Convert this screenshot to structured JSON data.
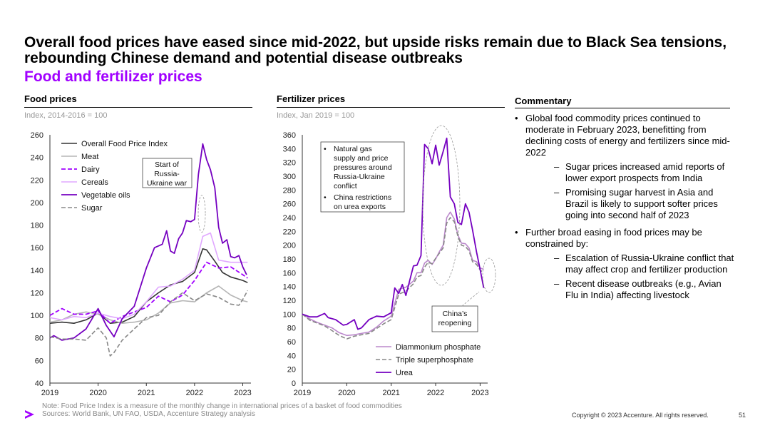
{
  "title": "Overall food prices have eased since mid-2022, but upside risks remain due to Black Sea tensions, rebounding Chinese demand and potential disease outbreaks",
  "subtitle": "Food and fertilizer prices",
  "colors": {
    "accent": "#a100ff",
    "food_index": "#333333",
    "meat": "#b5b5b5",
    "dairy": "#a100ff",
    "cereals": "#e0a8ff",
    "veg_oils": "#7500c0",
    "sugar": "#888888",
    "dap": "#bb88cc",
    "tsp": "#888888",
    "urea": "#7500c0"
  },
  "food_section": {
    "heading": "Food prices",
    "subheading": "Index, 2014-2016 = 100"
  },
  "fert_section": {
    "heading": "Fertilizer prices",
    "subheading": "Index, Jan 2019 = 100"
  },
  "commentary": {
    "heading": "Commentary",
    "items": [
      {
        "text": "Global food commodity prices continued to moderate in February 2023, benefitting from declining costs of energy and fertilizers since mid-2022",
        "subitems": [
          "Sugar prices increased amid reports of lower export prospects from India",
          "Promising sugar harvest in Asia and Brazil is likely to support softer prices going into second half of 2023"
        ]
      },
      {
        "text": "Further broad easing in food prices may be constrained by:",
        "subitems": [
          "Escalation of Russia-Ukraine conflict that may affect crop and fertilizer production",
          "Recent disease outbreaks (e.g., Avian Flu in India) affecting livestock"
        ]
      }
    ]
  },
  "note": "Note: Food Price Index is a measure of the monthly change in international prices of a basket of food commodities",
  "sources": "Sources: World Bank, UN FAO, USDA, Accenture Strategy analysis",
  "copyright": "Copyright © 2023 Accenture. All rights reserved.",
  "page_number": "51",
  "logo_name": "accenture-logo",
  "chart_data": [
    {
      "type": "line",
      "x_ticks": [
        "2019",
        "2020",
        "2021",
        "2022",
        "2023"
      ],
      "y_ticks": [
        40,
        60,
        80,
        100,
        120,
        140,
        160,
        180,
        200,
        220,
        240,
        260
      ],
      "xlim": [
        2019.0,
        2023.17
      ],
      "ylim": [
        40,
        260
      ],
      "legend_position": "top-left",
      "grid": false,
      "annotations": [
        {
          "text": "Start of Russia-Ukraine war",
          "x": 2022.15,
          "y": 185
        }
      ],
      "series": [
        {
          "name": "Overall Food Price Index",
          "color": "#333333",
          "dash": "solid",
          "x": [
            2019.0,
            2019.25,
            2019.5,
            2019.75,
            2020.0,
            2020.25,
            2020.5,
            2020.75,
            2021.0,
            2021.25,
            2021.5,
            2021.75,
            2022.0,
            2022.17,
            2022.25,
            2022.42,
            2022.58,
            2022.75,
            2023.0,
            2023.1
          ],
          "y": [
            93,
            94,
            93,
            96,
            102,
            93,
            94,
            99,
            112,
            120,
            127,
            130,
            138,
            159,
            158,
            148,
            138,
            134,
            131,
            129
          ]
        },
        {
          "name": "Meat",
          "color": "#b5b5b5",
          "dash": "solid",
          "x": [
            2019.0,
            2019.25,
            2019.5,
            2019.75,
            2020.0,
            2020.25,
            2020.5,
            2020.75,
            2021.0,
            2021.25,
            2021.5,
            2021.75,
            2022.0,
            2022.25,
            2022.5,
            2022.75,
            2023.0,
            2023.1
          ],
          "y": [
            94,
            96,
            101,
            103,
            101,
            96,
            93,
            94,
            96,
            102,
            111,
            113,
            112,
            120,
            126,
            118,
            113,
            112
          ]
        },
        {
          "name": "Dairy",
          "color": "#a100ff",
          "dash": "dash",
          "x": [
            2019.0,
            2019.25,
            2019.5,
            2019.75,
            2020.0,
            2020.25,
            2020.5,
            2020.75,
            2021.0,
            2021.25,
            2021.5,
            2021.75,
            2022.0,
            2022.25,
            2022.5,
            2022.75,
            2023.0,
            2023.1
          ],
          "y": [
            100,
            106,
            101,
            101,
            104,
            93,
            99,
            103,
            107,
            117,
            112,
            118,
            131,
            147,
            142,
            143,
            136,
            133
          ]
        },
        {
          "name": "Cereals",
          "color": "#e0a8ff",
          "dash": "solid",
          "x": [
            2019.0,
            2019.25,
            2019.5,
            2019.75,
            2020.0,
            2020.25,
            2020.5,
            2020.75,
            2021.0,
            2021.25,
            2021.5,
            2021.75,
            2022.0,
            2022.17,
            2022.33,
            2022.5,
            2022.75,
            2023.0,
            2023.1
          ],
          "y": [
            98,
            96,
            99,
            98,
            102,
            99,
            97,
            101,
            112,
            125,
            126,
            132,
            140,
            170,
            173,
            149,
            147,
            147,
            147
          ]
        },
        {
          "name": "Vegetable oils",
          "color": "#7500c0",
          "dash": "solid",
          "x": [
            2019.0,
            2019.08,
            2019.25,
            2019.5,
            2019.75,
            2020.0,
            2020.17,
            2020.33,
            2020.5,
            2020.75,
            2021.0,
            2021.17,
            2021.33,
            2021.42,
            2021.5,
            2021.58,
            2021.67,
            2021.75,
            2021.83,
            2021.92,
            2022.0,
            2022.08,
            2022.17,
            2022.25,
            2022.33,
            2022.42,
            2022.5,
            2022.58,
            2022.67,
            2022.75,
            2022.83,
            2022.92,
            2023.0,
            2023.08
          ],
          "y": [
            80,
            82,
            78,
            80,
            88,
            106,
            91,
            81,
            97,
            108,
            142,
            160,
            163,
            175,
            157,
            155,
            168,
            173,
            184,
            183,
            185,
            225,
            252,
            238,
            229,
            213,
            178,
            164,
            167,
            152,
            151,
            153,
            143,
            136
          ]
        },
        {
          "name": "Sugar",
          "color": "#888888",
          "dash": "dash",
          "x": [
            2019.0,
            2019.25,
            2019.5,
            2019.75,
            2020.0,
            2020.17,
            2020.25,
            2020.33,
            2020.5,
            2020.75,
            2021.0,
            2021.25,
            2021.5,
            2021.75,
            2022.0,
            2022.25,
            2022.5,
            2022.75,
            2022.92,
            2023.0,
            2023.1
          ],
          "y": [
            81,
            79,
            79,
            78,
            89,
            80,
            64,
            67,
            78,
            88,
            98,
            100,
            112,
            120,
            113,
            119,
            116,
            110,
            109,
            114,
            122
          ]
        }
      ]
    },
    {
      "type": "line",
      "x_ticks": [
        "2019",
        "2020",
        "2021",
        "2022",
        "2023"
      ],
      "y_ticks": [
        0,
        20,
        40,
        60,
        80,
        100,
        120,
        140,
        160,
        180,
        200,
        220,
        240,
        260,
        280,
        300,
        320,
        340,
        360
      ],
      "xlim": [
        2019.0,
        2023.17
      ],
      "ylim": [
        0,
        360
      ],
      "legend_position": "bottom-right",
      "grid": false,
      "annotations": [
        {
          "text": "Natural gas supply and price pressures around Russia-Ukraine conflict",
          "x": 2021.9,
          "y": 260
        },
        {
          "text": "China restrictions on urea exports",
          "x": 2021.9,
          "y": 260
        },
        {
          "text": "China’s reopening",
          "x": 2023.05,
          "y": 150
        }
      ],
      "series": [
        {
          "name": "Diammonium phosphate",
          "color": "#bb88cc",
          "dash": "solid",
          "x": [
            2019.0,
            2019.17,
            2019.33,
            2019.5,
            2019.67,
            2019.83,
            2020.0,
            2020.17,
            2020.33,
            2020.5,
            2020.67,
            2020.83,
            2021.0,
            2021.17,
            2021.33,
            2021.5,
            2021.58,
            2021.67,
            2021.75,
            2021.83,
            2021.92,
            2022.0,
            2022.08,
            2022.17,
            2022.25,
            2022.33,
            2022.42,
            2022.5,
            2022.58,
            2022.67,
            2022.75,
            2022.83,
            2022.92,
            2023.0,
            2023.08
          ],
          "y": [
            100,
            93,
            88,
            84,
            80,
            73,
            69,
            70,
            72,
            74,
            81,
            90,
            97,
            136,
            139,
            148,
            160,
            160,
            174,
            178,
            172,
            180,
            190,
            200,
            240,
            248,
            238,
            215,
            203,
            202,
            196,
            178,
            176,
            167,
            165
          ]
        },
        {
          "name": "Triple superphosphate",
          "color": "#888888",
          "dash": "dash",
          "x": [
            2019.0,
            2019.17,
            2019.33,
            2019.5,
            2019.67,
            2019.83,
            2020.0,
            2020.17,
            2020.33,
            2020.5,
            2020.67,
            2020.83,
            2021.0,
            2021.17,
            2021.33,
            2021.5,
            2021.58,
            2021.67,
            2021.75,
            2021.83,
            2021.92,
            2022.0,
            2022.08,
            2022.17,
            2022.25,
            2022.33,
            2022.42,
            2022.5,
            2022.58,
            2022.67,
            2022.75,
            2022.83,
            2022.92,
            2023.0,
            2023.08
          ],
          "y": [
            100,
            91,
            87,
            83,
            76,
            69,
            64,
            68,
            70,
            72,
            79,
            86,
            92,
            129,
            133,
            144,
            154,
            156,
            168,
            175,
            173,
            181,
            188,
            196,
            232,
            240,
            234,
            213,
            200,
            198,
            192,
            176,
            172,
            164,
            160
          ]
        },
        {
          "name": "Urea",
          "color": "#7500c0",
          "dash": "solid",
          "x": [
            2019.0,
            2019.17,
            2019.33,
            2019.5,
            2019.58,
            2019.75,
            2019.92,
            2020.0,
            2020.17,
            2020.25,
            2020.33,
            2020.5,
            2020.67,
            2020.83,
            2021.0,
            2021.08,
            2021.17,
            2021.25,
            2021.33,
            2021.5,
            2021.58,
            2021.67,
            2021.75,
            2021.83,
            2021.92,
            2022.0,
            2022.08,
            2022.17,
            2022.25,
            2022.33,
            2022.42,
            2022.5,
            2022.58,
            2022.67,
            2022.75,
            2022.83,
            2022.92,
            2023.0,
            2023.08
          ],
          "y": [
            100,
            96,
            96,
            101,
            95,
            92,
            84,
            85,
            92,
            78,
            80,
            92,
            97,
            96,
            102,
            138,
            130,
            143,
            127,
            170,
            171,
            185,
            346,
            340,
            318,
            345,
            316,
            336,
            355,
            270,
            260,
            233,
            230,
            260,
            248,
            222,
            190,
            165,
            138
          ]
        }
      ]
    }
  ]
}
